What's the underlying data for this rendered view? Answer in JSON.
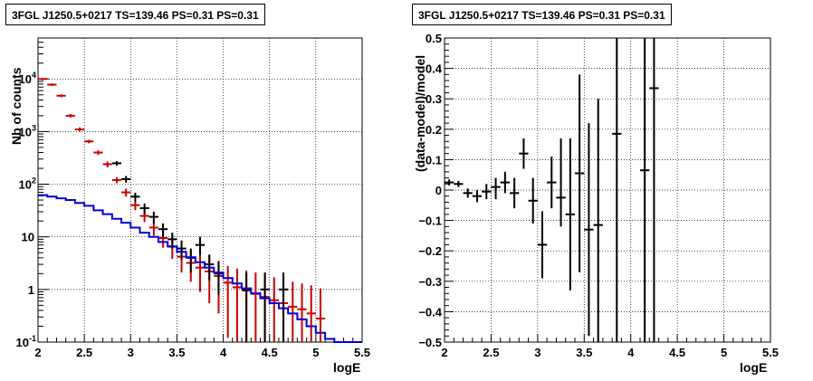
{
  "chart_data": [
    {
      "type": "scatter",
      "title": "3FGL J1250.5+0217 TS=139.46 PS=0.31 PS=0.31",
      "xlabel": "logE",
      "ylabel": "Nb of counts",
      "xlim": [
        2,
        5.5
      ],
      "ylim": [
        0.1,
        60000
      ],
      "yscale": "log",
      "grid": true,
      "x_ticks": [
        "2",
        "2.5",
        "3",
        "3.5",
        "4",
        "4.5",
        "5",
        "5.5"
      ],
      "y_ticks": [
        {
          "v": 0.1,
          "base": "10",
          "exp": "-1"
        },
        {
          "v": 1,
          "base": "1",
          "exp": ""
        },
        {
          "v": 10,
          "base": "10",
          "exp": ""
        },
        {
          "v": 100,
          "base": "10",
          "exp": "2"
        },
        {
          "v": 1000,
          "base": "10",
          "exp": "3"
        },
        {
          "v": 10000,
          "base": "10",
          "exp": "4"
        }
      ],
      "series": [
        {
          "color": "#cc0000",
          "x": [
            2.05,
            2.15,
            2.25,
            2.35,
            2.45,
            2.55,
            2.65,
            2.75,
            2.85,
            2.95,
            3.05,
            3.15,
            3.25,
            3.35,
            3.45,
            3.55,
            3.65,
            3.75,
            3.85,
            3.95,
            4.05,
            4.15,
            4.25,
            4.35,
            4.45,
            4.55,
            4.65,
            4.75,
            4.85,
            4.95,
            5.05
          ],
          "y": [
            10000,
            7800,
            4800,
            2000,
            1100,
            650,
            400,
            240,
            120,
            70,
            40,
            25,
            15,
            9.5,
            6.5,
            4.2,
            3.2,
            2.6,
            2.2,
            1.8,
            1.35,
            1.1,
            0.95,
            0.82,
            0.72,
            0.62,
            0.55,
            0.47,
            0.42,
            0.35,
            0.28
          ],
          "lo": [
            9500,
            7400,
            4500,
            1850,
            1000,
            600,
            360,
            210,
            105,
            58,
            32,
            19,
            10.5,
            6.2,
            3.8,
            2.1,
            1.4,
            0.9,
            0.55,
            0.35,
            0.12,
            0.1,
            0.1,
            0.1,
            0.1,
            0.1,
            0.1,
            0.1,
            0.1,
            0.1,
            0.1
          ],
          "hi": [
            10500,
            8200,
            5100,
            2150,
            1200,
            700,
            440,
            270,
            135,
            82,
            48,
            31,
            19.5,
            13,
            10,
            7.2,
            5.6,
            4.5,
            4.5,
            3.5,
            2.8,
            2.5,
            2.3,
            2.1,
            1.9,
            1.7,
            1.5,
            1.4,
            1.3,
            1.2,
            1.05
          ]
        },
        {
          "color": "#000000",
          "x": [
            2.85,
            2.95,
            3.05,
            3.15,
            3.25,
            3.35,
            3.45,
            3.55,
            3.65,
            3.75,
            3.85,
            3.95,
            4.25,
            4.45,
            4.65
          ],
          "y": [
            250,
            125,
            58,
            35,
            24,
            14,
            9,
            6,
            4,
            7,
            3,
            2,
            1,
            1,
            1
          ],
          "lo": [
            225,
            107,
            47,
            27,
            18,
            10,
            6,
            3.7,
            2.1,
            4.5,
            1.5,
            0.8,
            0.1,
            0.1,
            0.1
          ],
          "hi": [
            275,
            143,
            69,
            43,
            30,
            18,
            12,
            8.5,
            6,
            10,
            4.6,
            3.4,
            2.1,
            2.1,
            2.1
          ]
        },
        {
          "color": "#0000dd",
          "style": "step",
          "edges": [
            2.0,
            2.1,
            2.2,
            2.3,
            2.4,
            2.5,
            2.6,
            2.7,
            2.8,
            2.9,
            3.0,
            3.1,
            3.2,
            3.3,
            3.4,
            3.5,
            3.6,
            3.7,
            3.8,
            3.9,
            4.0,
            4.1,
            4.2,
            4.3,
            4.4,
            4.5,
            4.6,
            4.7,
            4.8,
            4.9,
            5.0,
            5.1,
            5.2,
            5.3,
            5.4,
            5.5
          ],
          "values": [
            62,
            58,
            54,
            50,
            44,
            39,
            32,
            27,
            22,
            18.5,
            15,
            12,
            10,
            8,
            6.6,
            5.2,
            4.1,
            3.3,
            2.6,
            2.1,
            1.65,
            1.3,
            1.05,
            0.85,
            0.68,
            0.55,
            0.44,
            0.35,
            0.27,
            0.2,
            0.15,
            0.115,
            0.1,
            0.1,
            0.1
          ]
        }
      ]
    },
    {
      "type": "scatter",
      "title": "3FGL J1250.5+0217 TS=139.46 PS=0.31 PS=0.31",
      "xlabel": "logE",
      "ylabel": "(data-model)/model",
      "xlim": [
        2,
        5.5
      ],
      "ylim": [
        -0.5,
        0.5
      ],
      "grid": true,
      "x_ticks": [
        "2",
        "2.5",
        "3",
        "3.5",
        "4",
        "4.5",
        "5",
        "5.5"
      ],
      "y_ticks": [
        "−0.5",
        "−0.4",
        "−0.3",
        "−0.2",
        "−0.1",
        "0",
        "0.1",
        "0.2",
        "0.3",
        "0.4",
        "0.5"
      ],
      "series": [
        {
          "color": "#000000",
          "x": [
            2.05,
            2.15,
            2.25,
            2.35,
            2.45,
            2.55,
            2.65,
            2.75,
            2.85,
            2.95,
            3.05,
            3.15,
            3.25,
            3.35,
            3.45,
            3.55,
            3.65,
            3.85,
            4.15,
            4.25
          ],
          "y": [
            0.025,
            0.02,
            -0.01,
            -0.02,
            -0.005,
            0.01,
            0.025,
            -0.01,
            0.12,
            -0.035,
            -0.18,
            0.025,
            -0.025,
            -0.08,
            0.055,
            -0.13,
            -0.115,
            0.185,
            0.065,
            0.335
          ],
          "lo": [
            0.015,
            0.01,
            -0.025,
            -0.04,
            -0.03,
            -0.03,
            -0.01,
            -0.06,
            0.07,
            -0.11,
            -0.29,
            -0.06,
            -0.12,
            -0.33,
            -0.27,
            -0.48,
            -0.5,
            -0.5,
            -0.5,
            -0.5
          ],
          "hi": [
            0.035,
            0.03,
            0.005,
            0.0,
            0.02,
            0.04,
            0.06,
            0.04,
            0.17,
            0.04,
            -0.07,
            0.11,
            0.17,
            0.17,
            0.38,
            0.22,
            0.3,
            0.5,
            0.5,
            0.5
          ]
        }
      ]
    }
  ]
}
